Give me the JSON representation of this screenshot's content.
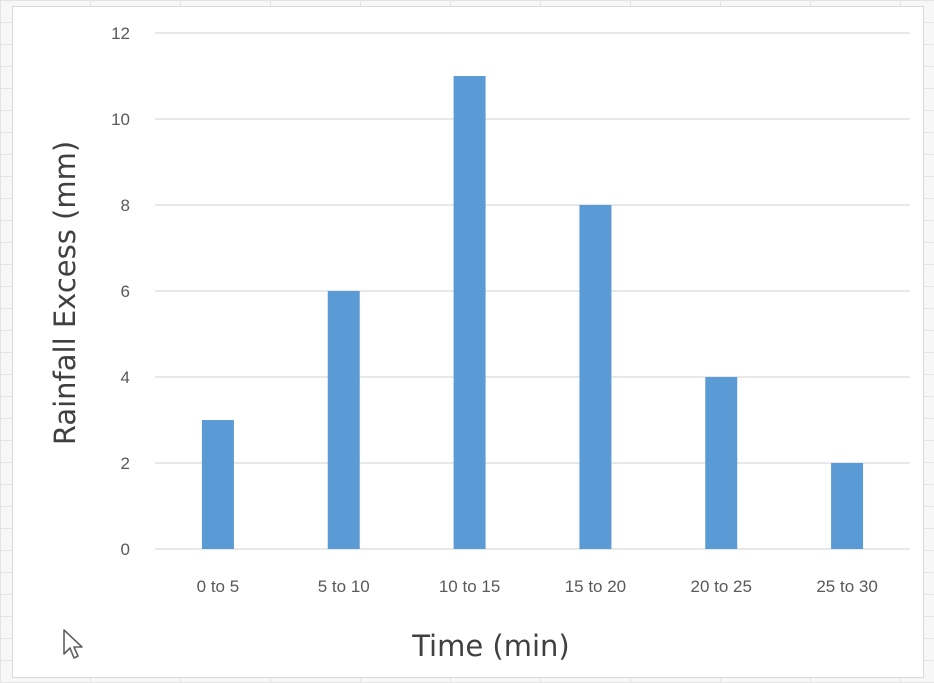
{
  "chart_data": {
    "type": "bar",
    "categories": [
      "0 to 5",
      "5 to 10",
      "10 to 15",
      "15 to 20",
      "20 to 25",
      "25 to 30"
    ],
    "values": [
      3,
      6,
      11,
      8,
      4,
      2
    ],
    "title": "",
    "xlabel": "Time (min)",
    "ylabel": "Rainfall Excess (mm)",
    "ylim": [
      0,
      12
    ],
    "yticks": [
      0,
      2,
      4,
      6,
      8,
      10,
      12
    ],
    "grid": true,
    "legend": "none",
    "bar_color": "#5b9bd5",
    "grid_color": "#d9d9d9"
  },
  "cursor": {
    "icon": "arrow-cursor-icon"
  }
}
